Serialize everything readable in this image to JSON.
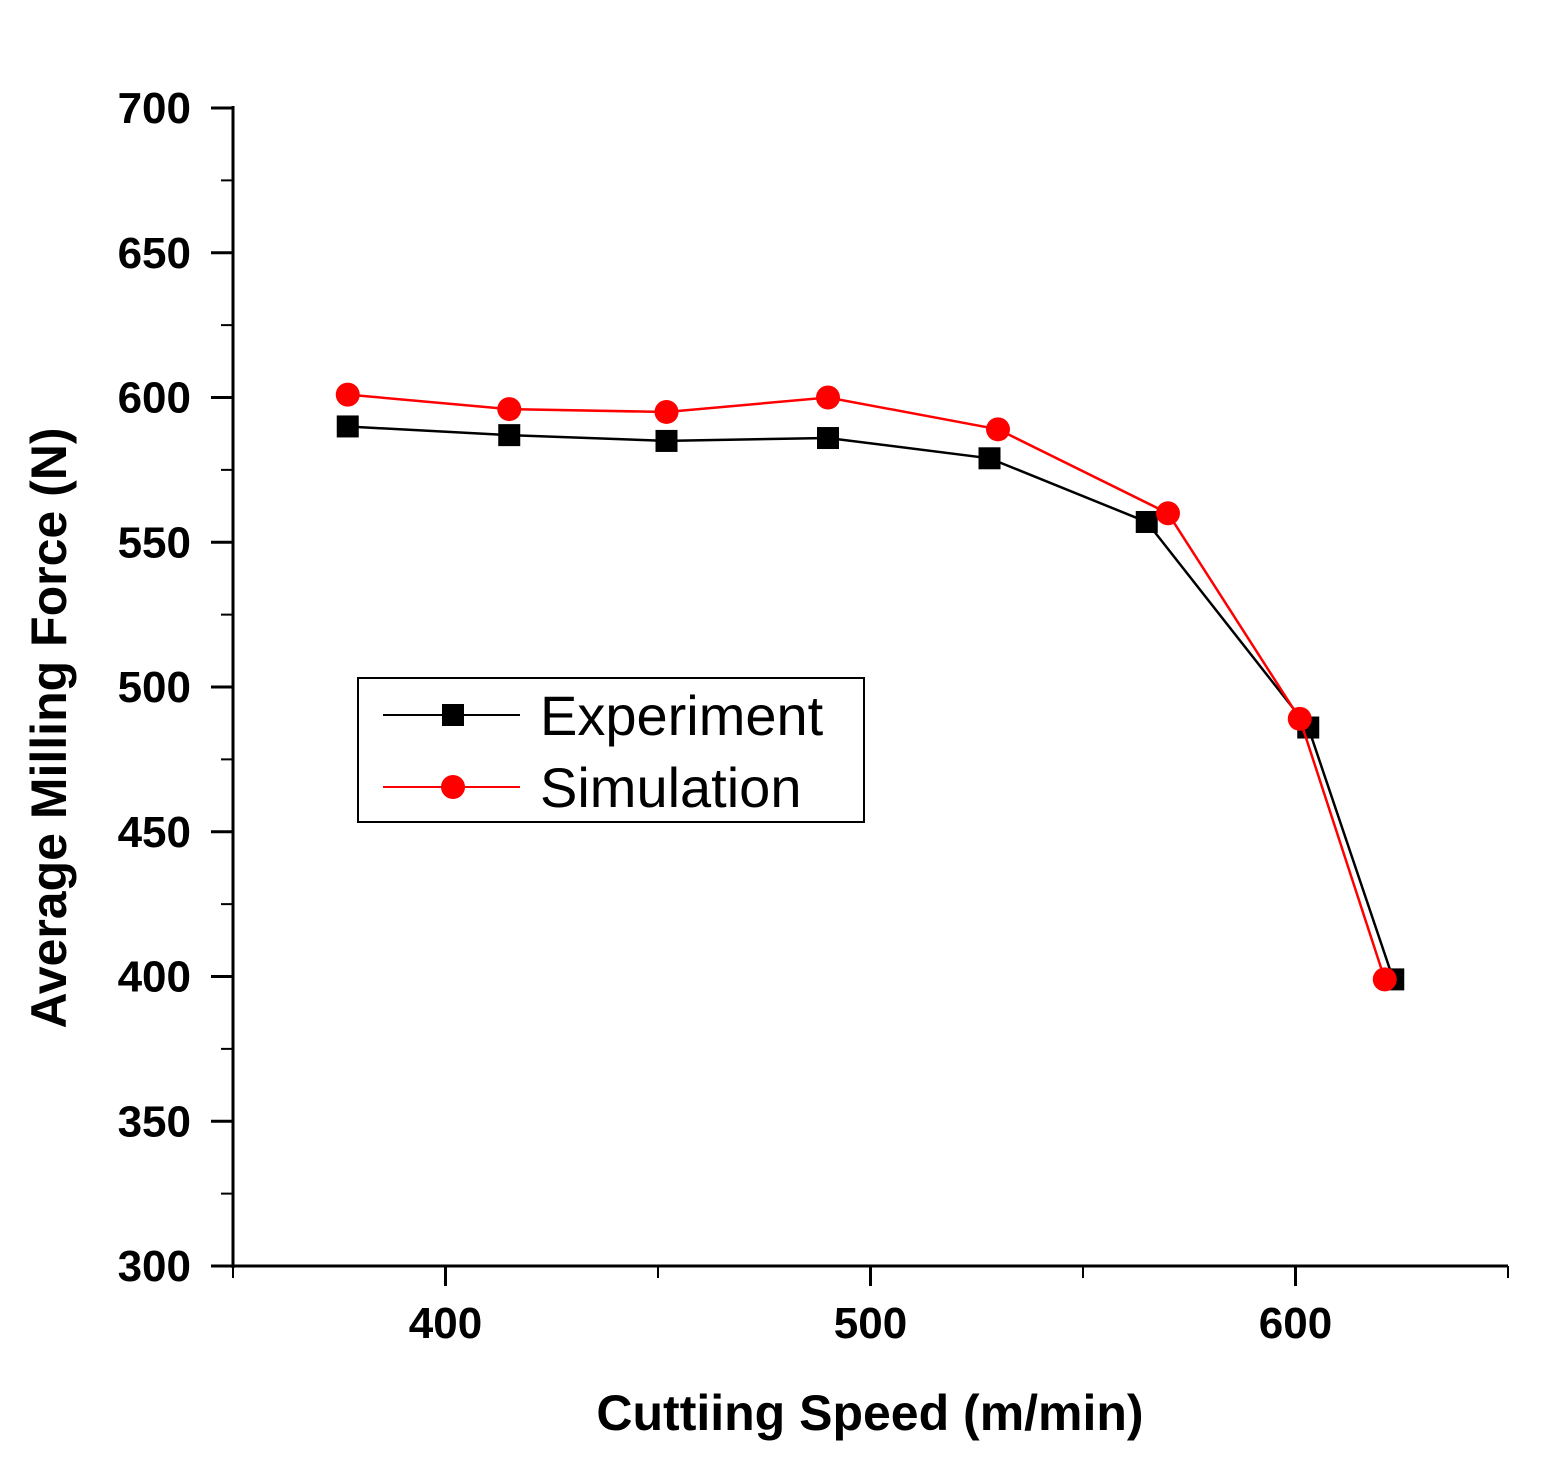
{
  "chart_data": {
    "type": "line",
    "title": "",
    "xlabel": "Cuttiing Speed (m/min)",
    "ylabel": "Average Milling Force (N)",
    "xlim": [
      350,
      650
    ],
    "ylim": [
      300,
      700
    ],
    "xticks": [
      400,
      500,
      600
    ],
    "yticks": [
      300,
      350,
      400,
      450,
      500,
      550,
      600,
      650,
      700
    ],
    "legend_position": "center-left",
    "series": [
      {
        "name": "Experiment",
        "color": "#000000",
        "marker": "square",
        "x": [
          377,
          415,
          452,
          490,
          528,
          565,
          603,
          623
        ],
        "y": [
          590,
          587,
          585,
          586,
          579,
          557,
          486,
          399
        ]
      },
      {
        "name": "Simulation",
        "color": "#ff0000",
        "marker": "circle",
        "x": [
          377,
          415,
          452,
          490,
          530,
          570,
          601,
          621
        ],
        "y": [
          601,
          596,
          595,
          600,
          589,
          560,
          489,
          399
        ]
      }
    ]
  }
}
